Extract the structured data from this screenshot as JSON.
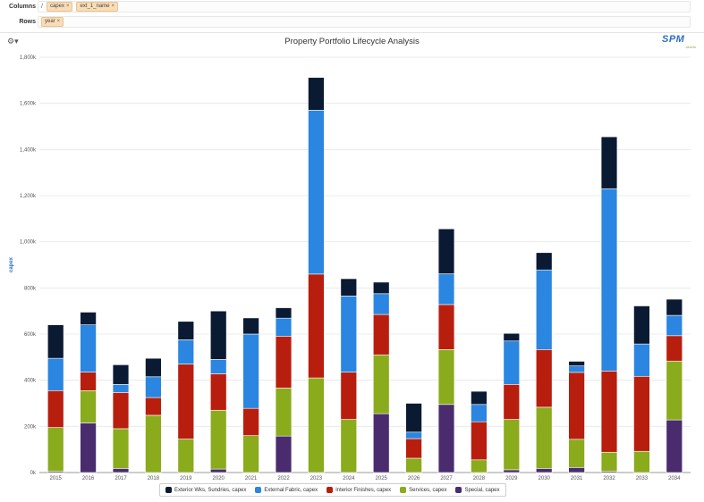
{
  "pivot": {
    "columns_label": "Columns",
    "columns_slash": "/",
    "column_chips": [
      "capex",
      "ext_1_name"
    ],
    "rows_label": "Rows",
    "row_chips": [
      "year"
    ],
    "chip_remove_glyph": "×"
  },
  "logo": {
    "main": "SPM",
    "sub": "assets"
  },
  "settings_glyph": "⚙▾",
  "chart_data": {
    "type": "bar",
    "stacked": true,
    "title": "Property Portfolio Lifecycle Analysis",
    "xlabel": "",
    "ylabel": "capex",
    "ylim": [
      0,
      1800000
    ],
    "yticks": [
      0,
      200000,
      400000,
      600000,
      800000,
      1000000,
      1200000,
      1400000,
      1600000,
      1800000
    ],
    "ytick_labels": [
      "0k",
      "200k",
      "400k",
      "600k",
      "800k",
      "1,000k",
      "1,200k",
      "1,400k",
      "1,600k",
      "1,800k"
    ],
    "grid": true,
    "legend_position": "bottom",
    "categories": [
      "2015",
      "2016",
      "2017",
      "2018",
      "2019",
      "2020",
      "2021",
      "2022",
      "2023",
      "2024",
      "2025",
      "2026",
      "2027",
      "2028",
      "2029",
      "2030",
      "2031",
      "2032",
      "2033",
      "2034"
    ],
    "series": [
      {
        "name": "Special, capex",
        "color": "#4a2c6e",
        "values": [
          5000,
          215000,
          18000,
          0,
          0,
          15000,
          0,
          158000,
          0,
          0,
          255000,
          0,
          295000,
          0,
          12000,
          18000,
          22000,
          5000,
          0,
          228000
        ]
      },
      {
        "name": "Services, capex",
        "color": "#8aab1c",
        "values": [
          190000,
          140000,
          172000,
          248000,
          145000,
          255000,
          160000,
          208000,
          410000,
          230000,
          255000,
          62000,
          238000,
          55000,
          218000,
          265000,
          122000,
          83000,
          92000,
          255000
        ]
      },
      {
        "name": "Interior Finishes, capex",
        "color": "#b81e0e",
        "values": [
          160000,
          80000,
          157000,
          77000,
          325000,
          158000,
          118000,
          225000,
          450000,
          205000,
          175000,
          85000,
          195000,
          165000,
          152000,
          250000,
          290000,
          352000,
          325000,
          110000
        ]
      },
      {
        "name": "External Fabric, capex",
        "color": "#2a86e0",
        "values": [
          140000,
          205000,
          35000,
          90000,
          105000,
          62000,
          322000,
          78000,
          710000,
          330000,
          90000,
          28000,
          133000,
          75000,
          188000,
          345000,
          28000,
          790000,
          140000,
          88000
        ]
      },
      {
        "name": "Exterior Wks, Sundries, capex",
        "color": "#0b1a33",
        "values": [
          145000,
          55000,
          85000,
          80000,
          80000,
          210000,
          70000,
          45000,
          142000,
          75000,
          50000,
          125000,
          195000,
          57000,
          33000,
          75000,
          20000,
          225000,
          165000,
          70000
        ]
      }
    ]
  }
}
